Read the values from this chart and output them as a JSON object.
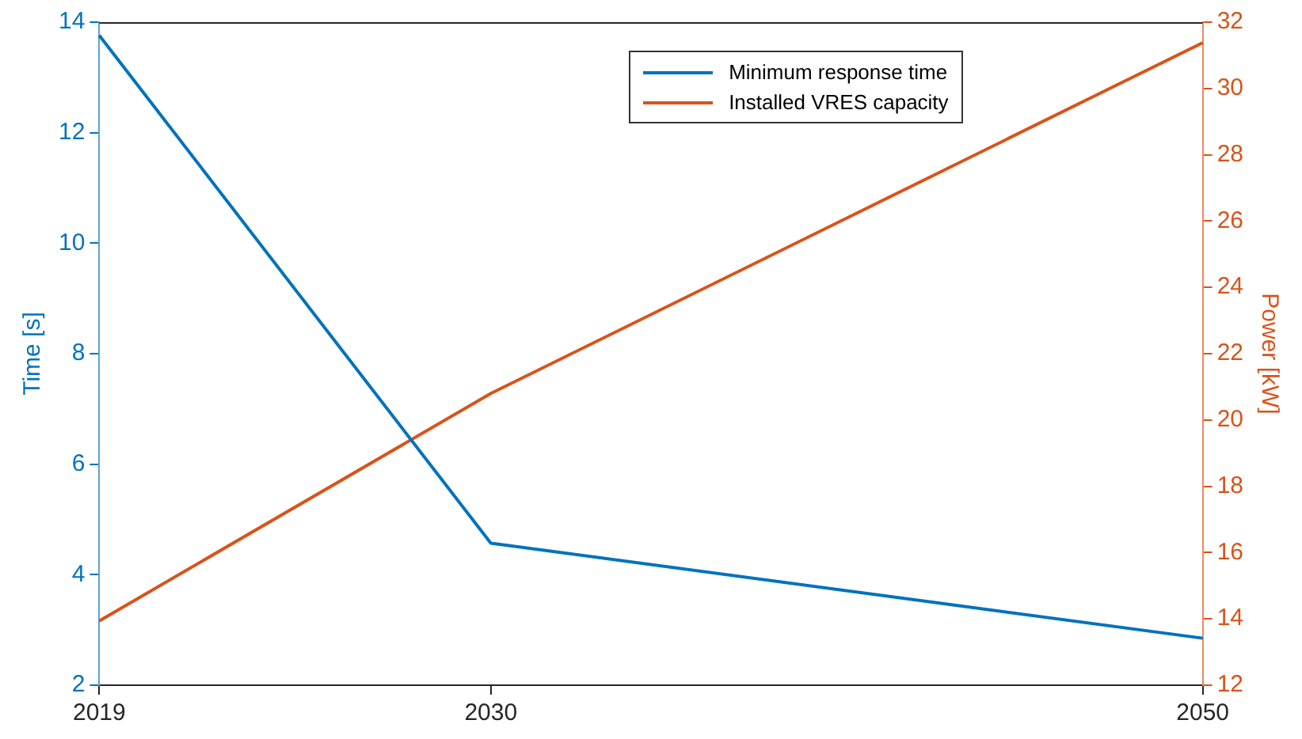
{
  "chart_data": {
    "type": "line",
    "x": [
      2019,
      2030,
      2050
    ],
    "xlim": [
      2019,
      2050
    ],
    "xticks": [
      2019,
      2030,
      2050
    ],
    "ylabel": "Time [s]",
    "y2label": "Power [kW]",
    "ylim": [
      2,
      14
    ],
    "yticks": [
      2,
      4,
      6,
      8,
      10,
      12,
      14
    ],
    "y2lim": [
      12,
      32
    ],
    "y2ticks": [
      12,
      14,
      16,
      18,
      20,
      22,
      24,
      26,
      28,
      30,
      32
    ],
    "legend": "top right",
    "grid": false,
    "marker": "none",
    "line_style": "solid",
    "series": [
      {
        "name": "Minimum response time",
        "color": "#0072bd",
        "values": [
          13.76,
          4.57,
          2.85
        ]
      },
      {
        "name": "Installed VRES capacity",
        "color": "#d95319",
        "axis": "y2",
        "values": [
          13.94,
          20.8,
          31.38
        ]
      }
    ]
  }
}
